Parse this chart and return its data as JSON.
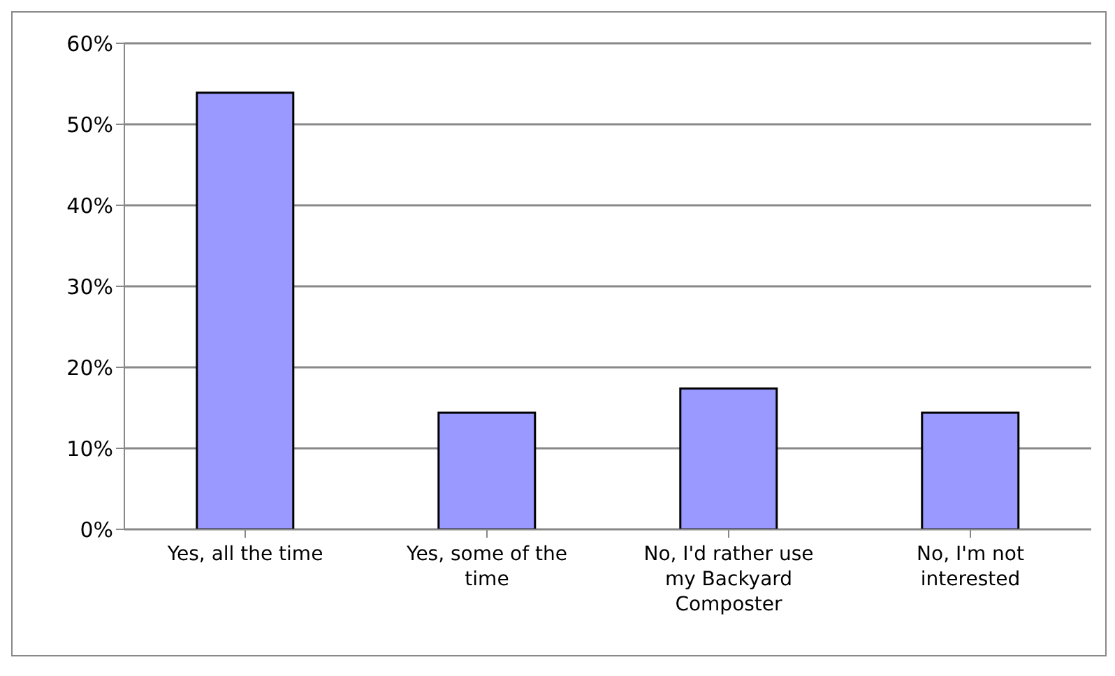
{
  "chart_data": {
    "type": "bar",
    "categories": [
      "Yes, all the time",
      "Yes, some of the time",
      "No, I'd rather use my Backyard Composter",
      "No, I'm not interested"
    ],
    "values": [
      53.9,
      14.4,
      17.4,
      14.4
    ],
    "color": "#9999ff",
    "ylim": [
      0,
      60
    ],
    "yticks": [
      {
        "value": 0,
        "label": "0%"
      },
      {
        "value": 10,
        "label": "10%"
      },
      {
        "value": 20,
        "label": "20%"
      },
      {
        "value": 30,
        "label": "30%"
      },
      {
        "value": 40,
        "label": "40%"
      },
      {
        "value": 50,
        "label": "50%"
      },
      {
        "value": 60,
        "label": "60%"
      }
    ],
    "grid": "y"
  }
}
